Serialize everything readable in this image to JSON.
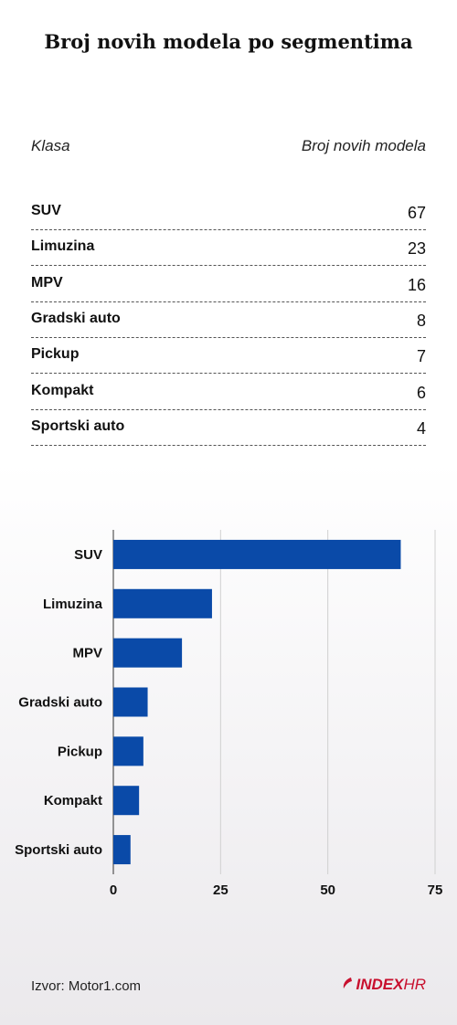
{
  "title": "Broj novih modela po segmentima",
  "table": {
    "headers": [
      "Klasa",
      "Broj novih modela"
    ],
    "rows": [
      {
        "label": "SUV",
        "value": "67"
      },
      {
        "label": "Limuzina",
        "value": "23"
      },
      {
        "label": "MPV",
        "value": "16"
      },
      {
        "label": "Gradski auto",
        "value": "8"
      },
      {
        "label": "Pickup",
        "value": "7"
      },
      {
        "label": "Kompakt",
        "value": "6"
      },
      {
        "label": "Sportski auto",
        "value": "4"
      }
    ]
  },
  "chart_data": {
    "type": "bar",
    "orientation": "horizontal",
    "categories": [
      "SUV",
      "Limuzina",
      "MPV",
      "Gradski auto",
      "Pickup",
      "Kompakt",
      "Sportski auto"
    ],
    "values": [
      67,
      23,
      16,
      8,
      7,
      6,
      4
    ],
    "xlim": [
      0,
      75
    ],
    "xticks": [
      0,
      25,
      50,
      75
    ],
    "grid": true,
    "bar_color": "#0a4aa8",
    "grid_color": "#d0d0d0"
  },
  "footer": {
    "source": "Izvor: Motor1.com",
    "logo_main": "INDEX",
    "logo_suffix": "HR",
    "logo_color": "#c8102e"
  }
}
